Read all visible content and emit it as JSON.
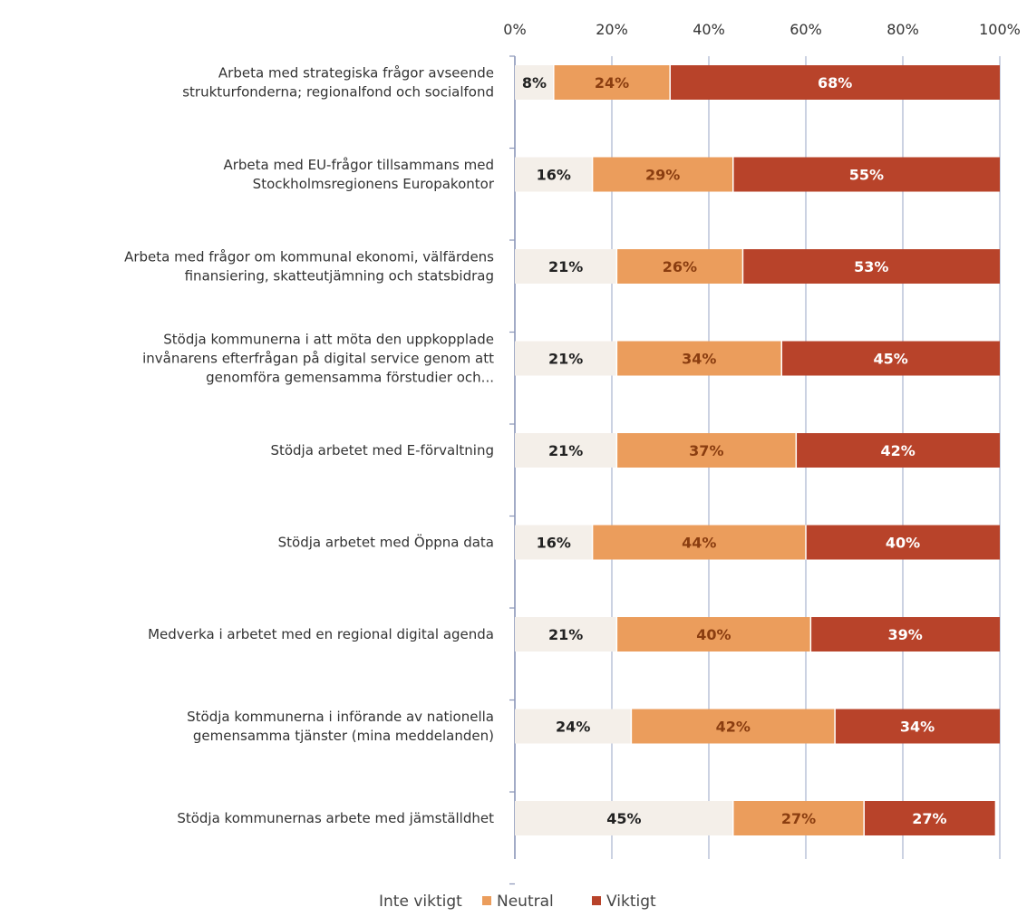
{
  "chart_data": {
    "type": "bar",
    "orientation": "horizontal",
    "stacked": true,
    "percent": true,
    "title": "",
    "xlabel": "",
    "ylabel": "",
    "xlim": [
      0,
      100
    ],
    "x_ticks": [
      "0%",
      "20%",
      "40%",
      "60%",
      "80%",
      "100%"
    ],
    "grid": true,
    "legend_position": "bottom",
    "categories": [
      [
        "Arbeta med strategiska frågor avseende",
        "strukturfonderna; regionalfond och socialfond"
      ],
      [
        "Arbeta med EU-frågor tillsammans med",
        "Stockholmsregionens Europakontor"
      ],
      [
        "Arbeta med frågor om kommunal ekonomi, välfärdens",
        "finansiering, skatteutjämning och statsbidrag"
      ],
      [
        "Stödja kommunerna i att möta den uppkopplade",
        "invånarens efterfrågan på digital service genom att",
        "genomföra gemensamma förstudier och..."
      ],
      [
        "Stödja arbetet med E-förvaltning"
      ],
      [
        "Stödja arbetet med Öppna data"
      ],
      [
        "Medverka i arbetet med en regional digital agenda"
      ],
      [
        "Stödja kommunerna i införande av nationella",
        "gemensamma tjänster (mina meddelanden)"
      ],
      [
        "Stödja kommunernas arbete med jämställdhet"
      ]
    ],
    "series": [
      {
        "name": "Inte viktigt",
        "color": "#f4efe9",
        "label_color": "#222222",
        "values": [
          8,
          16,
          21,
          21,
          21,
          16,
          21,
          24,
          45
        ],
        "labels": [
          "8%",
          "16%",
          "21%",
          "21%",
          "21%",
          "16%",
          "21%",
          "24%",
          "45%"
        ]
      },
      {
        "name": "Neutral",
        "color": "#eb9d5c",
        "label_color": "#8a3d10",
        "values": [
          24,
          29,
          26,
          34,
          37,
          44,
          40,
          42,
          27
        ],
        "labels": [
          "24%",
          "29%",
          "26%",
          "34%",
          "37%",
          "44%",
          "40%",
          "42%",
          "27%"
        ]
      },
      {
        "name": "Viktigt",
        "color": "#b8432a",
        "label_color": "#ffffff",
        "values": [
          68,
          55,
          53,
          45,
          42,
          40,
          39,
          34,
          27
        ],
        "labels": [
          "68%",
          "55%",
          "53%",
          "45%",
          "42%",
          "40%",
          "39%",
          "34%",
          "27%"
        ]
      }
    ]
  }
}
